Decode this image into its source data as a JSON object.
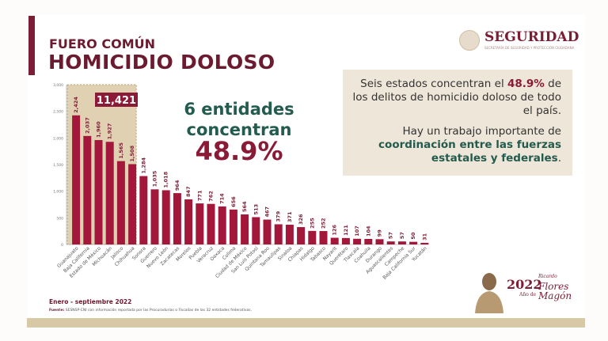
{
  "header": {
    "subtitle": "FUERO COMÚN",
    "title": "HOMICIDIO DOLOSO",
    "logo_text": "SEGURIDAD",
    "logo_sub": "SECRETARÍA DE SEGURIDAD Y PROTECCIÓN CIUDADANA"
  },
  "highlight": {
    "total_label": "11,421",
    "line1": "6 entidades",
    "line2": "concentran",
    "percent": "48.9%"
  },
  "note": {
    "p1_a": "Seis estados concentran el ",
    "p1_b": "48.9%",
    "p1_c": " de los delitos de homicidio doloso de todo el país.",
    "p2_a": "Hay un trabajo importante de ",
    "p2_b": "coordinación entre las fuerzas estatales y federales",
    "p2_c": "."
  },
  "footer": {
    "period": "Enero - septiembre 2022",
    "source_label": "Fuente:",
    "source": " SESNSP-CNI con información reportada por las Procuradurías o Fiscalías de las 32 entidades federativas."
  },
  "badge": {
    "year": "2022",
    "small": "Año de",
    "name1": "Ricardo",
    "name2": "Flores",
    "name3": "Magón"
  },
  "chart_data": {
    "type": "bar",
    "categories": [
      "Guanajuato",
      "Baja California",
      "Estado de México",
      "Michoacán",
      "Jalisco",
      "Chihuahua",
      "Sonora",
      "Guerrero",
      "Nuevo León",
      "Zacatecas",
      "Morelos",
      "Puebla",
      "Veracruz",
      "Oaxaca",
      "Colima",
      "Ciudad de México",
      "San Luis Potosí",
      "Quintana Roo",
      "Tamaulipas",
      "Sinaloa",
      "Chiapas",
      "Hidalgo",
      "Tabasco",
      "Nayarit",
      "Querétaro",
      "Tlaxcala",
      "Coahuila",
      "Durango",
      "Aguascalientes",
      "Campeche",
      "Baja California Sur",
      "Yucatán"
    ],
    "values": [
      2424,
      2037,
      1960,
      1927,
      1565,
      1508,
      1284,
      1035,
      1018,
      964,
      847,
      771,
      762,
      714,
      656,
      564,
      513,
      467,
      379,
      371,
      326,
      255,
      252,
      126,
      121,
      107,
      104,
      99,
      57,
      57,
      50,
      31
    ],
    "value_labels": [
      "2,424",
      "2,037",
      "1,960",
      "1,927",
      "1,565",
      "1,508",
      "1,284",
      "1,035",
      "1,018",
      "964",
      "847",
      "771",
      "762",
      "714",
      "656",
      "564",
      "513",
      "467",
      "379",
      "371",
      "326",
      "255",
      "252",
      "126",
      "121",
      "107",
      "104",
      "99",
      "57",
      "57",
      "50",
      "31"
    ],
    "yticks": [
      "0",
      "500",
      "1,000",
      "1,500",
      "2,000",
      "2,500",
      "3,000"
    ],
    "ylim": [
      0,
      3000
    ],
    "highlighted_count": 6,
    "bar_color": "#a3183a",
    "highlight_color": "#d6c29a"
  }
}
